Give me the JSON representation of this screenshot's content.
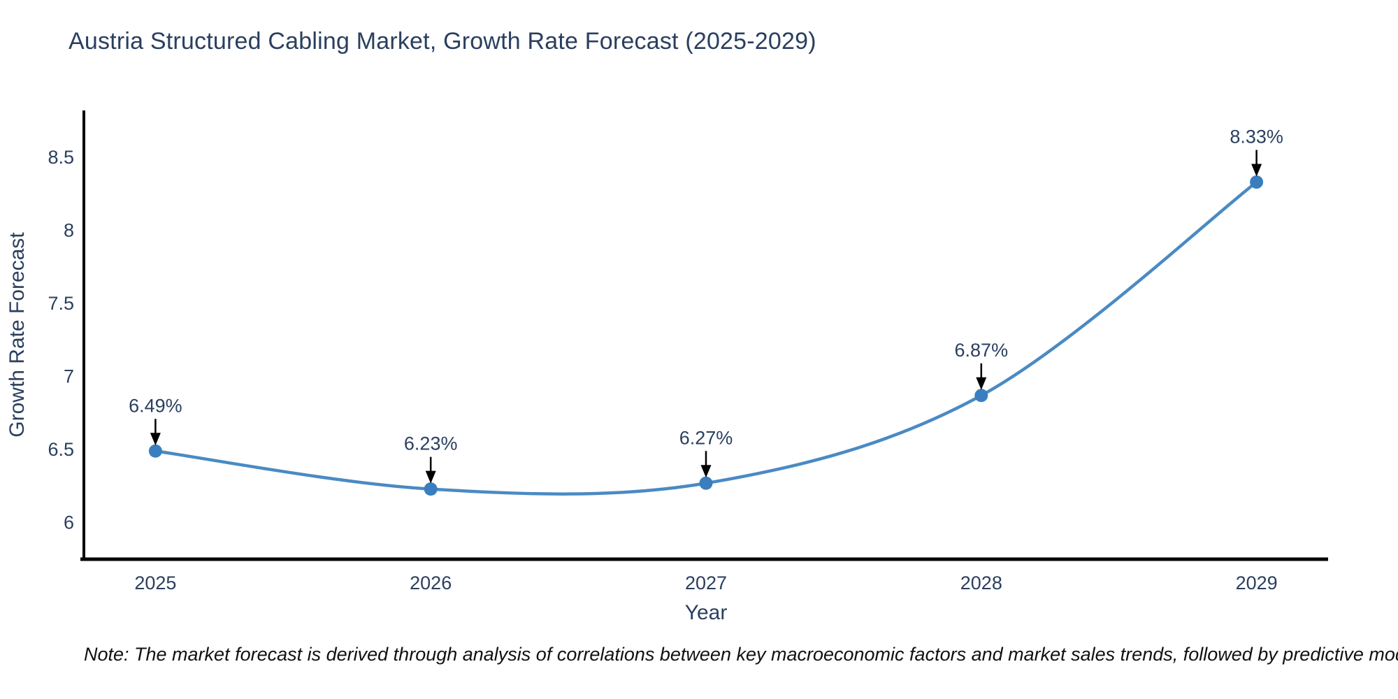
{
  "chart_data": {
    "type": "line",
    "title": "Austria Structured Cabling Market, Growth Rate Forecast (2025-2029)",
    "xlabel": "Year",
    "ylabel": "Growth Rate Forecast",
    "x": [
      2025,
      2026,
      2027,
      2028,
      2029
    ],
    "y": [
      6.49,
      6.23,
      6.27,
      6.87,
      8.33
    ],
    "point_labels": [
      "6.49%",
      "6.23%",
      "6.27%",
      "6.87%",
      "8.33%"
    ],
    "xticks": [
      2025,
      2026,
      2027,
      2028,
      2029
    ],
    "yticks": [
      6,
      6.5,
      7,
      7.5,
      8,
      8.5
    ],
    "xlim": [
      2024.74,
      2029.26
    ],
    "ylim": [
      5.75,
      8.82
    ],
    "grid": false,
    "legend": false,
    "line_shape": "spline",
    "colors": {
      "line": "#4a8ac4",
      "marker": "#3a7ebf",
      "axis": "#000000",
      "text": "#2a3f5f",
      "annotation_arrow": "#000000",
      "note_text": "#111111"
    },
    "note": "Note: The market forecast is derived through analysis of correlations between key macroeconomic factors and market sales trends, followed by predictive modeling to project future sales"
  }
}
